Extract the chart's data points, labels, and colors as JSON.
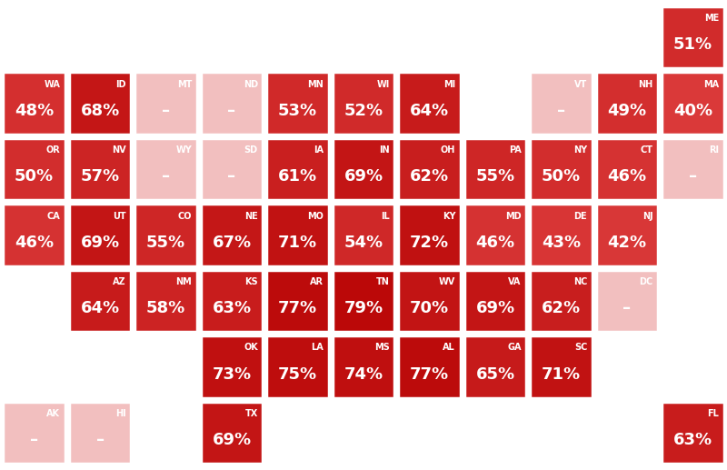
{
  "background": "#ffffff",
  "n_cols": 11,
  "n_rows": 7,
  "states": [
    {
      "abbr": "ME",
      "label": "51%",
      "value": 51,
      "col": 10,
      "row": 0
    },
    {
      "abbr": "WA",
      "label": "48%",
      "value": 48,
      "col": 0,
      "row": 1
    },
    {
      "abbr": "ID",
      "label": "68%",
      "value": 68,
      "col": 1,
      "row": 1
    },
    {
      "abbr": "MT",
      "label": "–",
      "value": null,
      "col": 2,
      "row": 1
    },
    {
      "abbr": "ND",
      "label": "–",
      "value": null,
      "col": 3,
      "row": 1
    },
    {
      "abbr": "MN",
      "label": "53%",
      "value": 53,
      "col": 4,
      "row": 1
    },
    {
      "abbr": "WI",
      "label": "52%",
      "value": 52,
      "col": 5,
      "row": 1
    },
    {
      "abbr": "MI",
      "label": "64%",
      "value": 64,
      "col": 6,
      "row": 1
    },
    {
      "abbr": "VT",
      "label": "–",
      "value": null,
      "col": 8,
      "row": 1
    },
    {
      "abbr": "NH",
      "label": "49%",
      "value": 49,
      "col": 9,
      "row": 1
    },
    {
      "abbr": "MA",
      "label": "40%",
      "value": 40,
      "col": 10,
      "row": 1
    },
    {
      "abbr": "OR",
      "label": "50%",
      "value": 50,
      "col": 0,
      "row": 2
    },
    {
      "abbr": "NV",
      "label": "57%",
      "value": 57,
      "col": 1,
      "row": 2
    },
    {
      "abbr": "WY",
      "label": "–",
      "value": null,
      "col": 2,
      "row": 2
    },
    {
      "abbr": "SD",
      "label": "–",
      "value": null,
      "col": 3,
      "row": 2
    },
    {
      "abbr": "IA",
      "label": "61%",
      "value": 61,
      "col": 4,
      "row": 2
    },
    {
      "abbr": "IN",
      "label": "69%",
      "value": 69,
      "col": 5,
      "row": 2
    },
    {
      "abbr": "OH",
      "label": "62%",
      "value": 62,
      "col": 6,
      "row": 2
    },
    {
      "abbr": "PA",
      "label": "55%",
      "value": 55,
      "col": 7,
      "row": 2
    },
    {
      "abbr": "NY",
      "label": "50%",
      "value": 50,
      "col": 8,
      "row": 2
    },
    {
      "abbr": "CT",
      "label": "46%",
      "value": 46,
      "col": 9,
      "row": 2
    },
    {
      "abbr": "RI",
      "label": "–",
      "value": null,
      "col": 10,
      "row": 2
    },
    {
      "abbr": "CA",
      "label": "46%",
      "value": 46,
      "col": 0,
      "row": 3
    },
    {
      "abbr": "UT",
      "label": "69%",
      "value": 69,
      "col": 1,
      "row": 3
    },
    {
      "abbr": "CO",
      "label": "55%",
      "value": 55,
      "col": 2,
      "row": 3
    },
    {
      "abbr": "NE",
      "label": "67%",
      "value": 67,
      "col": 3,
      "row": 3
    },
    {
      "abbr": "MO",
      "label": "71%",
      "value": 71,
      "col": 4,
      "row": 3
    },
    {
      "abbr": "IL",
      "label": "54%",
      "value": 54,
      "col": 5,
      "row": 3
    },
    {
      "abbr": "KY",
      "label": "72%",
      "value": 72,
      "col": 6,
      "row": 3
    },
    {
      "abbr": "MD",
      "label": "46%",
      "value": 46,
      "col": 7,
      "row": 3
    },
    {
      "abbr": "DE",
      "label": "43%",
      "value": 43,
      "col": 8,
      "row": 3
    },
    {
      "abbr": "NJ",
      "label": "42%",
      "value": 42,
      "col": 9,
      "row": 3
    },
    {
      "abbr": "AZ",
      "label": "64%",
      "value": 64,
      "col": 1,
      "row": 4
    },
    {
      "abbr": "NM",
      "label": "58%",
      "value": 58,
      "col": 2,
      "row": 4
    },
    {
      "abbr": "KS",
      "label": "63%",
      "value": 63,
      "col": 3,
      "row": 4
    },
    {
      "abbr": "AR",
      "label": "77%",
      "value": 77,
      "col": 4,
      "row": 4
    },
    {
      "abbr": "TN",
      "label": "79%",
      "value": 79,
      "col": 5,
      "row": 4
    },
    {
      "abbr": "WV",
      "label": "70%",
      "value": 70,
      "col": 6,
      "row": 4
    },
    {
      "abbr": "VA",
      "label": "69%",
      "value": 69,
      "col": 7,
      "row": 4
    },
    {
      "abbr": "NC",
      "label": "62%",
      "value": 62,
      "col": 8,
      "row": 4
    },
    {
      "abbr": "DC",
      "label": "–",
      "value": null,
      "col": 9,
      "row": 4
    },
    {
      "abbr": "OK",
      "label": "73%",
      "value": 73,
      "col": 3,
      "row": 5
    },
    {
      "abbr": "LA",
      "label": "75%",
      "value": 75,
      "col": 4,
      "row": 5
    },
    {
      "abbr": "MS",
      "label": "74%",
      "value": 74,
      "col": 5,
      "row": 5
    },
    {
      "abbr": "AL",
      "label": "77%",
      "value": 77,
      "col": 6,
      "row": 5
    },
    {
      "abbr": "GA",
      "label": "65%",
      "value": 65,
      "col": 7,
      "row": 5
    },
    {
      "abbr": "SC",
      "label": "71%",
      "value": 71,
      "col": 8,
      "row": 5
    },
    {
      "abbr": "AK",
      "label": "–",
      "value": null,
      "col": 0,
      "row": 6
    },
    {
      "abbr": "HI",
      "label": "–",
      "value": null,
      "col": 1,
      "row": 6
    },
    {
      "abbr": "TX",
      "label": "69%",
      "value": 69,
      "col": 3,
      "row": 6
    },
    {
      "abbr": "FL",
      "label": "63%",
      "value": 63,
      "col": 10,
      "row": 6
    }
  ],
  "null_color": "#f2bfbf",
  "red_low": [
    220,
    60,
    60
  ],
  "red_high": [
    185,
    5,
    5
  ],
  "val_min": 38,
  "val_max": 82,
  "abbr_fontsize": 7,
  "label_fontsize": 13,
  "text_color": "#ffffff",
  "edge_color": "#ffffff",
  "edge_lw": 2.5
}
